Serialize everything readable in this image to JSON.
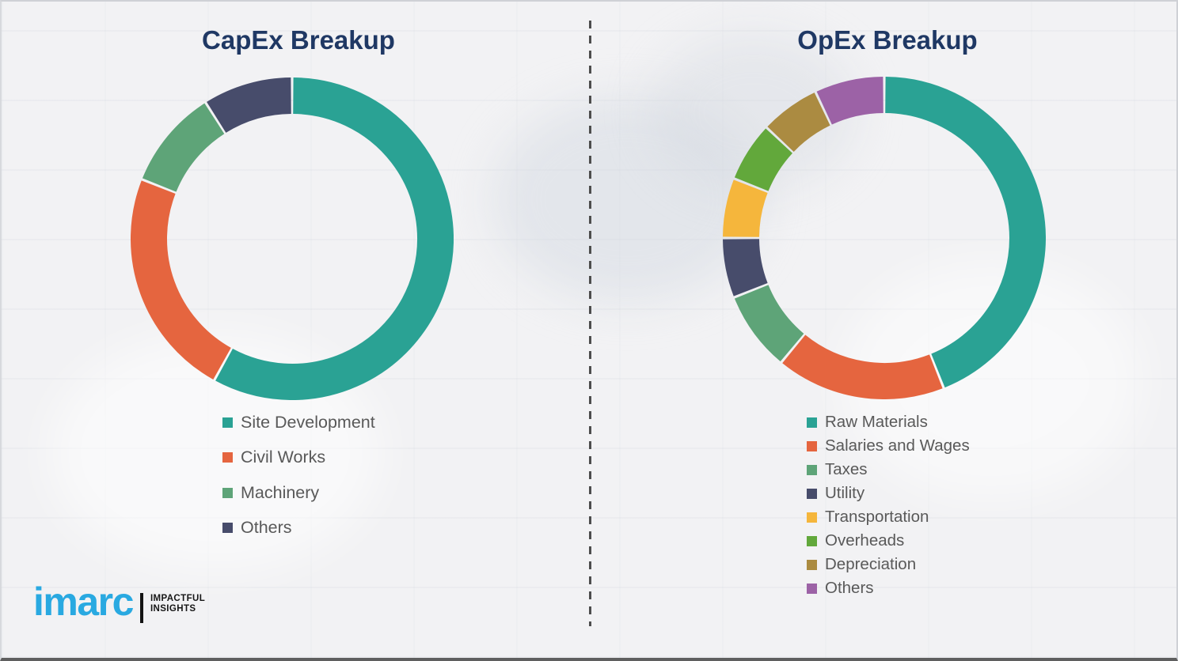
{
  "theme": {
    "background_color": "#f2f2f4",
    "title_color": "#1f3864",
    "legend_text_color": "#595959",
    "divider_color": "#4d4d4d"
  },
  "chart_data": [
    {
      "type": "pie",
      "subtype": "donut",
      "title": "CapEx Breakup",
      "start_angle_deg": 0,
      "direction": "clockwise",
      "legend_position": "below",
      "series": [
        {
          "label": "Site Development",
          "value": 58,
          "color": "#2aa294"
        },
        {
          "label": "Civil Works",
          "value": 23,
          "color": "#e5653f"
        },
        {
          "label": "Machinery",
          "value": 10,
          "color": "#5ea478"
        },
        {
          "label": "Others",
          "value": 9,
          "color": "#474c6b"
        }
      ]
    },
    {
      "type": "pie",
      "subtype": "donut",
      "title": "OpEx Breakup",
      "start_angle_deg": 0,
      "direction": "clockwise",
      "legend_position": "below",
      "series": [
        {
          "label": "Raw Materials",
          "value": 44,
          "color": "#2aa294"
        },
        {
          "label": "Salaries and Wages",
          "value": 17,
          "color": "#e5653f"
        },
        {
          "label": "Taxes",
          "value": 8,
          "color": "#5ea478"
        },
        {
          "label": "Utility",
          "value": 6,
          "color": "#474c6b"
        },
        {
          "label": "Transportation",
          "value": 6,
          "color": "#f5b63c"
        },
        {
          "label": "Overheads",
          "value": 6,
          "color": "#62a83b"
        },
        {
          "label": "Depreciation",
          "value": 6,
          "color": "#ab8b41"
        },
        {
          "label": "Others",
          "value": 7,
          "color": "#9c62a6"
        }
      ]
    }
  ],
  "logo": {
    "brand": "imarc",
    "brand_color": "#29a9e1",
    "tagline_line1": "IMPACTFUL",
    "tagline_line2": "INSIGHTS"
  }
}
